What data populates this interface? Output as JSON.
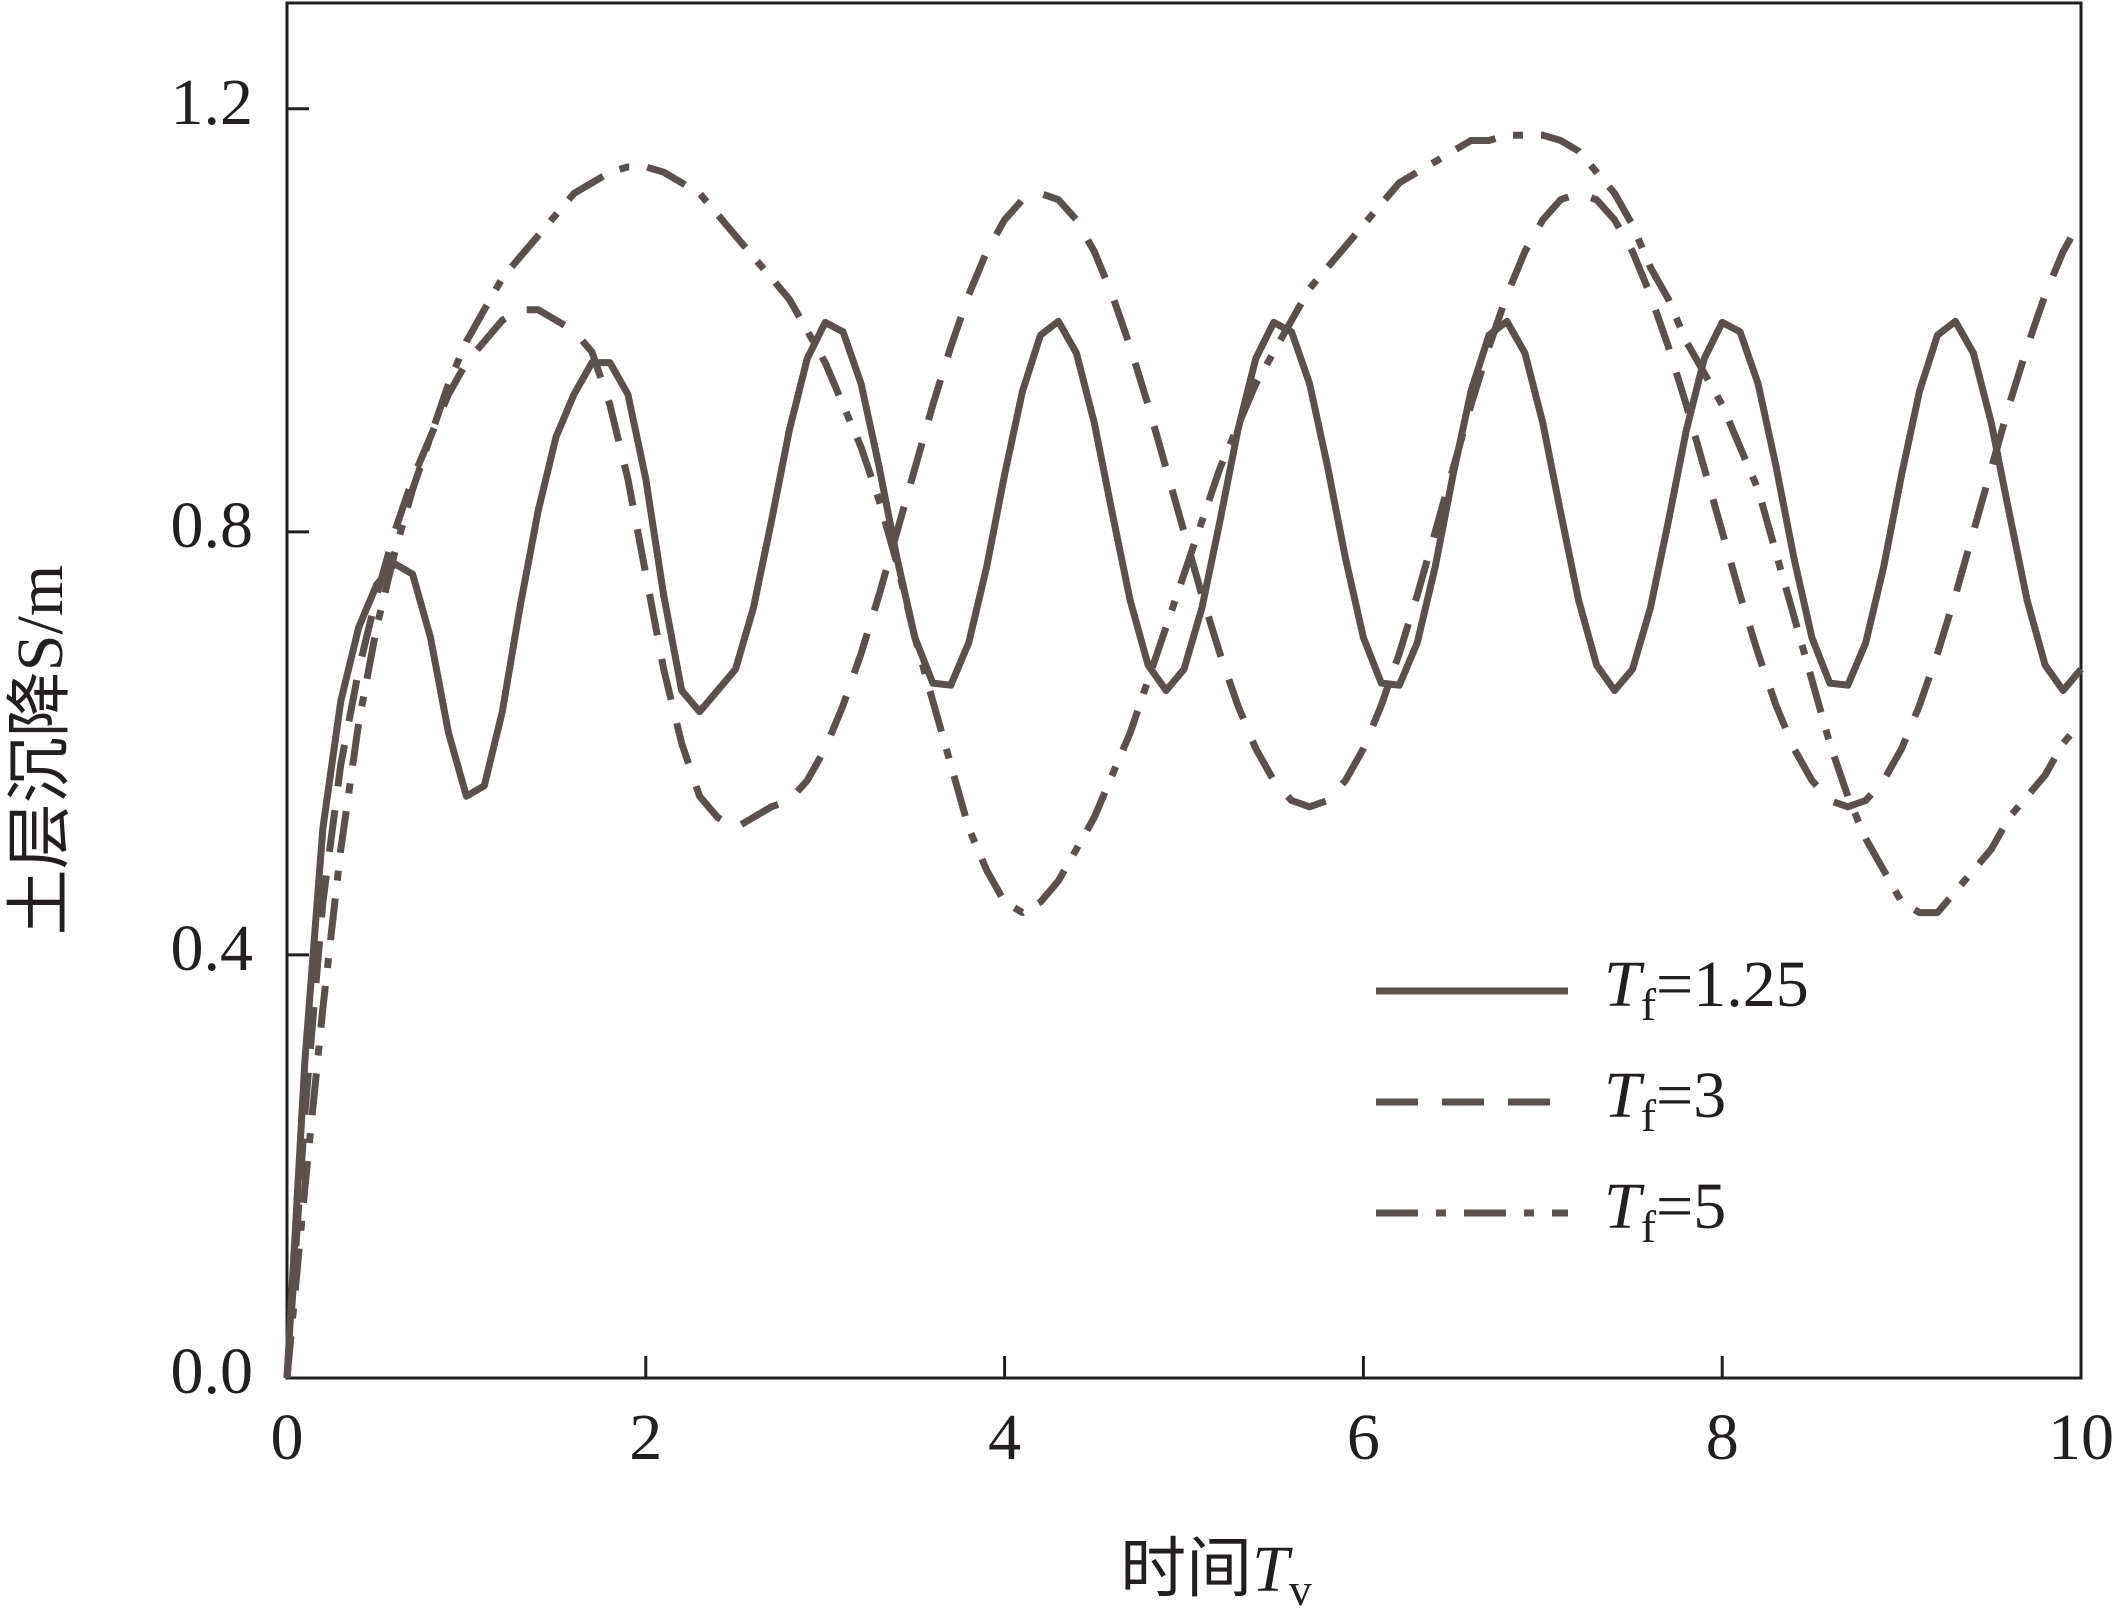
{
  "chart_data": {
    "type": "line",
    "y_label": "土层沉降S/m",
    "x_label": "时间Tv",
    "x": [
      0,
      0.1,
      0.2,
      0.3,
      0.4,
      0.5,
      0.6,
      0.7,
      0.8,
      0.9,
      1,
      1.1,
      1.2,
      1.3,
      1.4,
      1.5,
      1.6,
      1.7,
      1.8,
      1.9,
      2,
      2.1,
      2.2,
      2.3,
      2.4,
      2.5,
      2.6,
      2.7,
      2.8,
      2.9,
      3,
      3.1,
      3.2,
      3.3,
      3.4,
      3.5,
      3.6,
      3.7,
      3.8,
      3.9,
      4,
      4.1,
      4.2,
      4.3,
      4.4,
      4.5,
      4.6,
      4.7,
      4.8,
      4.9,
      5,
      5.1,
      5.2,
      5.3,
      5.4,
      5.5,
      5.6,
      5.7,
      5.8,
      5.9,
      6,
      6.1,
      6.2,
      6.3,
      6.4,
      6.5,
      6.6,
      6.7,
      6.8,
      6.9,
      7,
      7.1,
      7.2,
      7.3,
      7.4,
      7.5,
      7.6,
      7.7,
      7.8,
      7.9,
      8,
      8.1,
      8.2,
      8.3,
      8.4,
      8.5,
      8.6,
      8.7,
      8.8,
      8.9,
      9,
      9.1,
      9.2,
      9.3,
      9.4,
      9.5,
      9.6,
      9.7,
      9.8,
      9.9,
      10
    ],
    "series": [
      {
        "name": "Tf=1.25",
        "color": "#5a504d",
        "linestyle": "solid",
        "values": [
          0,
          0.3,
          0.52,
          0.64,
          0.71,
          0.75,
          0.77,
          0.76,
          0.7,
          0.61,
          0.55,
          0.56,
          0.63,
          0.73,
          0.82,
          0.89,
          0.93,
          0.96,
          0.96,
          0.93,
          0.85,
          0.74,
          0.65,
          0.63,
          0.65,
          0.67,
          0.728,
          0.81,
          0.896,
          0.964,
          0.998,
          0.989,
          0.94,
          0.862,
          0.775,
          0.7,
          0.657,
          0.655,
          0.695,
          0.767,
          0.854,
          0.933,
          0.986,
          0.999,
          0.969,
          0.903,
          0.818,
          0.735,
          0.674,
          0.65,
          0.67,
          0.728,
          0.81,
          0.896,
          0.964,
          0.998,
          0.989,
          0.94,
          0.862,
          0.775,
          0.7,
          0.657,
          0.655,
          0.695,
          0.767,
          0.854,
          0.933,
          0.986,
          0.999,
          0.969,
          0.903,
          0.818,
          0.735,
          0.674,
          0.65,
          0.67,
          0.728,
          0.81,
          0.896,
          0.964,
          0.998,
          0.989,
          0.94,
          0.862,
          0.775,
          0.7,
          0.657,
          0.655,
          0.695,
          0.767,
          0.854,
          0.933,
          0.986,
          0.999,
          0.969,
          0.903,
          0.818,
          0.735,
          0.674,
          0.65,
          0.67
        ]
      },
      {
        "name": "Tf=3",
        "color": "#5a504d",
        "linestyle": "dashed",
        "values": [
          0,
          0.25,
          0.45,
          0.58,
          0.67,
          0.74,
          0.8,
          0.85,
          0.89,
          0.93,
          0.96,
          0.98,
          1,
          1.01,
          1.01,
          1,
          0.99,
          0.97,
          0.92,
          0.85,
          0.76,
          0.67,
          0.6,
          0.55,
          0.53,
          0.52,
          0.53,
          0.54,
          0.546,
          0.565,
          0.595,
          0.636,
          0.685,
          0.74,
          0.8,
          0.86,
          0.92,
          0.975,
          1.024,
          1.065,
          1.095,
          1.114,
          1.12,
          1.114,
          1.095,
          1.065,
          1.024,
          0.975,
          0.92,
          0.86,
          0.8,
          0.74,
          0.685,
          0.636,
          0.595,
          0.565,
          0.546,
          0.54,
          0.546,
          0.565,
          0.595,
          0.636,
          0.685,
          0.74,
          0.8,
          0.86,
          0.92,
          0.975,
          1.024,
          1.065,
          1.095,
          1.114,
          1.12,
          1.114,
          1.095,
          1.065,
          1.024,
          0.975,
          0.92,
          0.86,
          0.8,
          0.74,
          0.685,
          0.636,
          0.595,
          0.565,
          0.546,
          0.54,
          0.546,
          0.565,
          0.595,
          0.636,
          0.685,
          0.74,
          0.8,
          0.86,
          0.92,
          0.975,
          1.024,
          1.065,
          1.095
        ]
      },
      {
        "name": "Tf=5",
        "color": "#5a504d",
        "linestyle": "dashdot",
        "values": [
          0,
          0.18,
          0.35,
          0.5,
          0.62,
          0.71,
          0.78,
          0.84,
          0.89,
          0.94,
          0.98,
          1.01,
          1.04,
          1.06,
          1.08,
          1.1,
          1.12,
          1.13,
          1.14,
          1.145,
          1.145,
          1.14,
          1.13,
          1.12,
          1.1,
          1.08,
          1.06,
          1.04,
          1.02,
          0.99,
          0.96,
          0.92,
          0.88,
          0.83,
          0.77,
          0.7,
          0.64,
          0.58,
          0.52,
          0.48,
          0.45,
          0.44,
          0.45,
          0.47,
          0.5,
          0.53,
          0.57,
          0.61,
          0.66,
          0.71,
          0.76,
          0.81,
          0.86,
          0.9,
          0.94,
          0.97,
          1,
          1.03,
          1.05,
          1.07,
          1.09,
          1.11,
          1.13,
          1.14,
          1.15,
          1.16,
          1.17,
          1.17,
          1.175,
          1.175,
          1.175,
          1.17,
          1.16,
          1.14,
          1.12,
          1.09,
          1.05,
          1.02,
          0.98,
          0.95,
          0.92,
          0.88,
          0.84,
          0.78,
          0.72,
          0.66,
          0.6,
          0.55,
          0.51,
          0.48,
          0.45,
          0.44,
          0.44,
          0.46,
          0.48,
          0.5,
          0.53,
          0.55,
          0.57,
          0.6,
          0.62
        ]
      }
    ],
    "xlim": [
      0,
      10
    ],
    "ylim": [
      0,
      1.3
    ],
    "xticks": [
      0,
      2,
      4,
      6,
      8,
      10
    ],
    "yticks": [
      {
        "value": 0,
        "label": "0.0"
      },
      0.4,
      0.8,
      1.2
    ],
    "legend": "lower right"
  }
}
